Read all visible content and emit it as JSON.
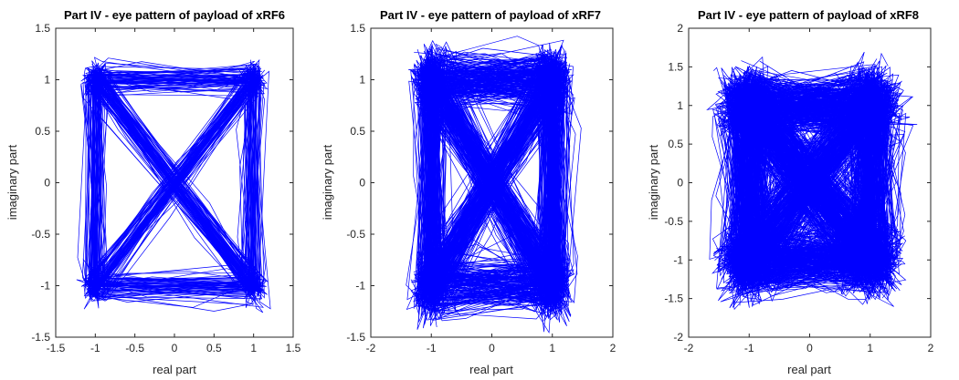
{
  "chart_data": [
    {
      "type": "line",
      "title": "Part IV - eye pattern of payload of xRF6",
      "xlabel": "real part",
      "ylabel": "imaginary part",
      "xlim": [
        -1.5,
        1.5
      ],
      "ylim": [
        -1.5,
        1.5
      ],
      "xticks": [
        -1.5,
        -1,
        -0.5,
        0,
        0.5,
        1,
        1.5
      ],
      "xtick_labels": [
        "-1.5",
        "-1",
        "-0.5",
        "0",
        "0.5",
        "1",
        "1.5"
      ],
      "yticks": [
        -1.5,
        -1,
        -0.5,
        0,
        0.5,
        1,
        1.5
      ],
      "ytick_labels": [
        "-1.5",
        "-1",
        "-0.5",
        "0",
        "0.5",
        "1",
        "1.5"
      ],
      "color": "#0000ff",
      "grid": false,
      "constellation": [
        [
          -1,
          1
        ],
        [
          1,
          1
        ],
        [
          1,
          -1
        ],
        [
          -1,
          -1
        ]
      ],
      "spread": 0.12,
      "series": [
        {
          "points": [
            [
              -1,
              1
            ],
            [
              1,
              1
            ],
            [
              1,
              -1
            ],
            [
              -1,
              -1
            ],
            [
              1,
              1
            ],
            [
              -1,
              -1
            ],
            [
              -1,
              1
            ],
            [
              1,
              -1
            ],
            [
              1,
              1
            ],
            [
              -1,
              1
            ],
            [
              -1,
              -1
            ],
            [
              1,
              -1
            ],
            [
              -1,
              1
            ],
            [
              1,
              1
            ],
            [
              -1,
              -1
            ],
            [
              1,
              -1
            ],
            [
              1,
              1
            ],
            [
              1,
              -1
            ],
            [
              -1,
              1
            ],
            [
              -1,
              -1
            ],
            [
              1,
              1
            ],
            [
              -1,
              1
            ],
            [
              1,
              -1
            ],
            [
              -1,
              -1
            ]
          ]
        }
      ]
    },
    {
      "type": "line",
      "title": "Part IV - eye pattern of payload of xRF7",
      "xlabel": "real part",
      "ylabel": "imaginary part",
      "xlim": [
        -2,
        2
      ],
      "ylim": [
        -1.5,
        1.5
      ],
      "xticks": [
        -2,
        -1,
        0,
        1,
        2
      ],
      "xtick_labels": [
        "-2",
        "-1",
        "0",
        "1",
        "2"
      ],
      "yticks": [
        -1.5,
        -1,
        -0.5,
        0,
        0.5,
        1,
        1.5
      ],
      "ytick_labels": [
        "-1.5",
        "-1",
        "-0.5",
        "0",
        "0.5",
        "1",
        "1.5"
      ],
      "color": "#0000ff",
      "grid": false,
      "constellation": [
        [
          -1,
          1
        ],
        [
          1,
          1
        ],
        [
          1,
          -1
        ],
        [
          -1,
          -1
        ]
      ],
      "spread": 0.22,
      "series": [
        {
          "points": [
            [
              -1,
              1
            ],
            [
              1,
              -1
            ],
            [
              1,
              1
            ],
            [
              -1,
              -1
            ],
            [
              -1,
              1
            ],
            [
              1,
              1
            ],
            [
              1,
              -1
            ],
            [
              -1,
              -1
            ],
            [
              1,
              1
            ],
            [
              -1,
              1
            ],
            [
              1,
              -1
            ],
            [
              -1,
              1
            ],
            [
              -1,
              -1
            ],
            [
              1,
              1
            ],
            [
              1,
              -1
            ],
            [
              -1,
              -1
            ],
            [
              -1,
              1
            ],
            [
              1,
              -1
            ],
            [
              1,
              1
            ],
            [
              -1,
              -1
            ],
            [
              1,
              -1
            ],
            [
              -1,
              1
            ],
            [
              1,
              1
            ],
            [
              -1,
              -1
            ]
          ]
        }
      ]
    },
    {
      "type": "line",
      "title": "Part IV - eye pattern of payload of xRF8",
      "xlabel": "real part",
      "ylabel": "imaginary part",
      "xlim": [
        -2,
        2
      ],
      "ylim": [
        -2,
        2
      ],
      "xticks": [
        -2,
        -1,
        0,
        1,
        2
      ],
      "xtick_labels": [
        "-2",
        "-1",
        "0",
        "1",
        "2"
      ],
      "yticks": [
        -2,
        -1.5,
        -1,
        -0.5,
        0,
        0.5,
        1,
        1.5,
        2
      ],
      "ytick_labels": [
        "-2",
        "-1.5",
        "-1",
        "-0.5",
        "0",
        "0.5",
        "1",
        "1.5",
        "2"
      ],
      "color": "#0000ff",
      "grid": false,
      "constellation": [
        [
          -1,
          1
        ],
        [
          1,
          1
        ],
        [
          1,
          -1
        ],
        [
          -1,
          -1
        ]
      ],
      "spread": 0.35,
      "series": [
        {
          "points": [
            [
              -1,
              1
            ],
            [
              1,
              1
            ],
            [
              1,
              -1
            ],
            [
              -1,
              -1
            ],
            [
              1,
              -1
            ],
            [
              -1,
              1
            ],
            [
              -1,
              -1
            ],
            [
              1,
              1
            ],
            [
              -1,
              1
            ],
            [
              1,
              -1
            ],
            [
              1,
              1
            ],
            [
              -1,
              -1
            ],
            [
              -1,
              1
            ],
            [
              1,
              1
            ],
            [
              -1,
              -1
            ],
            [
              1,
              -1
            ],
            [
              1,
              1
            ],
            [
              -1,
              1
            ],
            [
              1,
              -1
            ],
            [
              -1,
              -1
            ],
            [
              -1,
              1
            ],
            [
              1,
              -1
            ],
            [
              1,
              1
            ],
            [
              -1,
              -1
            ]
          ]
        }
      ]
    }
  ]
}
